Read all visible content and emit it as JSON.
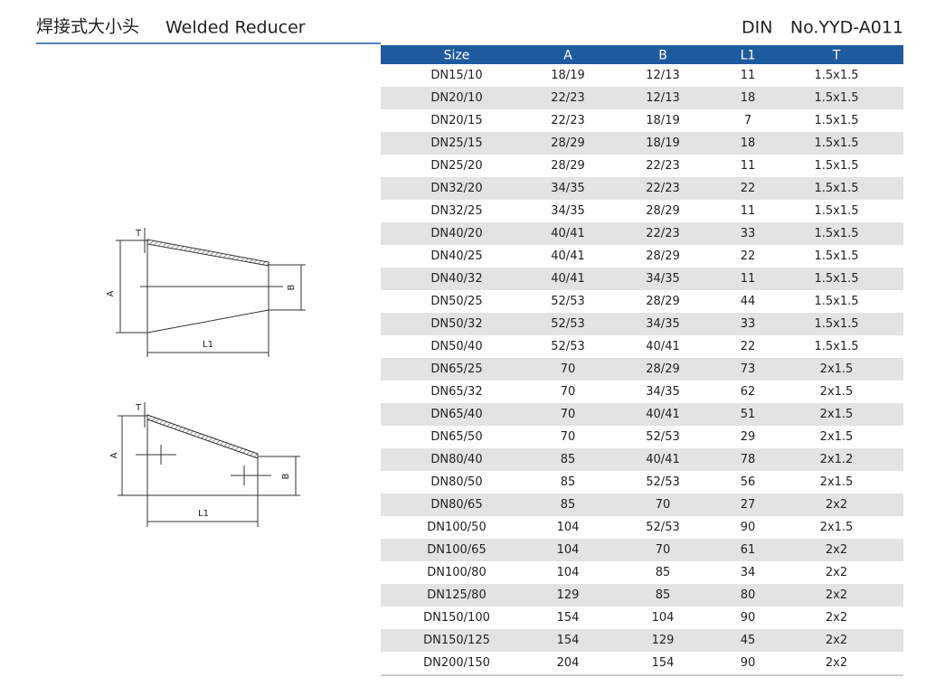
{
  "header": {
    "title_cn": "焊接式大小头",
    "title_en": "Welded Reducer",
    "standard": "DIN",
    "code": "No.YYD-A011"
  },
  "diagrams": [
    {
      "labels": {
        "t": "T",
        "a": "A",
        "b": "B",
        "l1": "L1"
      }
    },
    {
      "labels": {
        "t": "T",
        "a": "A",
        "b": "B",
        "l1": "L1"
      }
    }
  ],
  "table": {
    "columns": [
      "Size",
      "A",
      "B",
      "L1",
      "T"
    ],
    "rows": [
      [
        "DN15/10",
        "18/19",
        "12/13",
        "11",
        "1.5x1.5"
      ],
      [
        "DN20/10",
        "22/23",
        "12/13",
        "18",
        "1.5x1.5"
      ],
      [
        "DN20/15",
        "22/23",
        "18/19",
        "7",
        "1.5x1.5"
      ],
      [
        "DN25/15",
        "28/29",
        "18/19",
        "18",
        "1.5x1.5"
      ],
      [
        "DN25/20",
        "28/29",
        "22/23",
        "11",
        "1.5x1.5"
      ],
      [
        "DN32/20",
        "34/35",
        "22/23",
        "22",
        "1.5x1.5"
      ],
      [
        "DN32/25",
        "34/35",
        "28/29",
        "11",
        "1.5x1.5"
      ],
      [
        "DN40/20",
        "40/41",
        "22/23",
        "33",
        "1.5x1.5"
      ],
      [
        "DN40/25",
        "40/41",
        "28/29",
        "22",
        "1.5x1.5"
      ],
      [
        "DN40/32",
        "40/41",
        "34/35",
        "11",
        "1.5x1.5"
      ],
      [
        "DN50/25",
        "52/53",
        "28/29",
        "44",
        "1.5x1.5"
      ],
      [
        "DN50/32",
        "52/53",
        "34/35",
        "33",
        "1.5x1.5"
      ],
      [
        "DN50/40",
        "52/53",
        "40/41",
        "22",
        "1.5x1.5"
      ],
      [
        "DN65/25",
        "70",
        "28/29",
        "73",
        "2x1.5"
      ],
      [
        "DN65/32",
        "70",
        "34/35",
        "62",
        "2x1.5"
      ],
      [
        "DN65/40",
        "70",
        "40/41",
        "51",
        "2x1.5"
      ],
      [
        "DN65/50",
        "70",
        "52/53",
        "29",
        "2x1.5"
      ],
      [
        "DN80/40",
        "85",
        "40/41",
        "78",
        "2x1.2"
      ],
      [
        "DN80/50",
        "85",
        "52/53",
        "56",
        "2x1.5"
      ],
      [
        "DN80/65",
        "85",
        "70",
        "27",
        "2x2"
      ],
      [
        "DN100/50",
        "104",
        "52/53",
        "90",
        "2x1.5"
      ],
      [
        "DN100/65",
        "104",
        "70",
        "61",
        "2x2"
      ],
      [
        "DN100/80",
        "104",
        "85",
        "34",
        "2x2"
      ],
      [
        "DN125/80",
        "129",
        "85",
        "80",
        "2x2"
      ],
      [
        "DN150/100",
        "154",
        "104",
        "90",
        "2x2"
      ],
      [
        "DN150/125",
        "154",
        "129",
        "45",
        "2x2"
      ],
      [
        "DN200/150",
        "204",
        "154",
        "90",
        "2x2"
      ]
    ]
  }
}
